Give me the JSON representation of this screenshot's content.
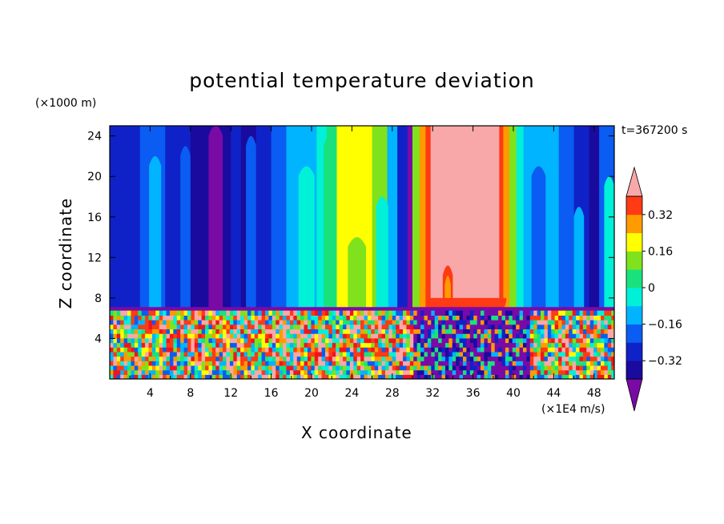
{
  "chart_data": {
    "type": "heatmap",
    "title": "potential temperature deviation",
    "xlabel": "X coordinate",
    "ylabel": "Z coordinate",
    "x_unit": "(×1E4 m/s)",
    "y_unit": "(×1000 m)",
    "time_label": "t=367200 s",
    "xlim": [
      0,
      50
    ],
    "ylim": [
      0,
      25
    ],
    "x_ticks": [
      4,
      8,
      12,
      16,
      20,
      24,
      28,
      32,
      36,
      40,
      44,
      48
    ],
    "y_ticks": [
      4,
      8,
      12,
      16,
      20,
      24
    ],
    "colorbar": {
      "levels": [
        -0.4,
        -0.32,
        -0.24,
        -0.16,
        -0.08,
        0,
        0.08,
        0.16,
        0.24,
        0.32,
        0.4
      ],
      "labels": [
        "0.32",
        "0.16",
        "0",
        "−0.16",
        "−0.32"
      ],
      "label_values": [
        0.32,
        0.16,
        0,
        -0.16,
        -0.32
      ],
      "extend": "both",
      "colors": [
        "#7a0aa6",
        "#1a0a9e",
        "#0f22c8",
        "#0a5cf2",
        "#00b4ff",
        "#00f0d8",
        "#19e27d",
        "#7fe21c",
        "#ffff00",
        "#ff9b00",
        "#ff3a14",
        "#f0141e",
        "#f8a8a8"
      ]
    }
  }
}
